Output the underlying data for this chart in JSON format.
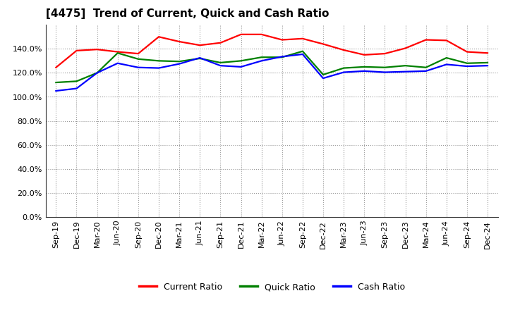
{
  "title": "[4475]  Trend of Current, Quick and Cash Ratio",
  "x_labels": [
    "Sep-19",
    "Dec-19",
    "Mar-20",
    "Jun-20",
    "Sep-20",
    "Dec-20",
    "Mar-21",
    "Jun-21",
    "Sep-21",
    "Dec-21",
    "Mar-22",
    "Jun-22",
    "Sep-22",
    "Dec-22",
    "Mar-23",
    "Jun-23",
    "Sep-23",
    "Dec-23",
    "Mar-24",
    "Jun-24",
    "Sep-24",
    "Dec-24"
  ],
  "current_ratio": [
    124.5,
    138.5,
    139.5,
    137.5,
    136.0,
    150.0,
    146.0,
    143.0,
    145.0,
    152.0,
    152.0,
    147.5,
    148.5,
    144.0,
    139.0,
    135.0,
    136.0,
    140.5,
    147.5,
    147.0,
    137.5,
    136.5
  ],
  "quick_ratio": [
    112.0,
    113.0,
    120.0,
    136.5,
    131.5,
    130.0,
    129.5,
    132.0,
    128.5,
    130.0,
    133.0,
    133.0,
    138.0,
    118.5,
    124.0,
    125.0,
    124.5,
    126.0,
    124.5,
    132.5,
    128.0,
    128.5
  ],
  "cash_ratio": [
    105.0,
    107.0,
    120.0,
    128.0,
    124.5,
    124.0,
    127.5,
    132.5,
    126.0,
    125.0,
    130.0,
    133.5,
    135.5,
    115.5,
    120.5,
    121.5,
    120.5,
    121.0,
    121.5,
    127.0,
    125.5,
    126.0
  ],
  "current_color": "#ff0000",
  "quick_color": "#008000",
  "cash_color": "#0000ff",
  "bg_color": "#ffffff",
  "plot_bg_color": "#ffffff",
  "grid_color": "#999999",
  "ylim": [
    0,
    160
  ],
  "yticks": [
    0,
    20,
    40,
    60,
    80,
    100,
    120,
    140
  ],
  "ytick_labels": [
    "0.0%",
    "20.0%",
    "40.0%",
    "60.0%",
    "80.0%",
    "100.0%",
    "120.0%",
    "140.0%"
  ],
  "legend_labels": [
    "Current Ratio",
    "Quick Ratio",
    "Cash Ratio"
  ],
  "title_fontsize": 11,
  "tick_fontsize": 8,
  "legend_fontsize": 9,
  "line_width": 1.6
}
